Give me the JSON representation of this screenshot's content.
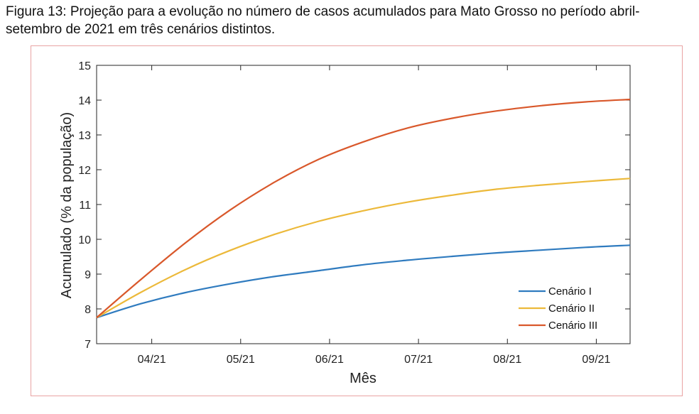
{
  "caption": "Figura 13: Projeção para a evolução no número de casos acumulados para Mato Grosso no período abril-setembro de 2021 em três cenários distintos.",
  "chart_data": {
    "type": "line",
    "title": "",
    "xlabel": "Mês",
    "ylabel": "Acumulado (% da população)",
    "xlim": [
      0,
      6
    ],
    "ylim": [
      7,
      15
    ],
    "yticks": [
      7,
      8,
      9,
      10,
      11,
      12,
      13,
      14,
      15
    ],
    "xticks": [
      {
        "pos": 0.62,
        "label": "04/21"
      },
      {
        "pos": 1.62,
        "label": "05/21"
      },
      {
        "pos": 2.62,
        "label": "06/21"
      },
      {
        "pos": 3.62,
        "label": "07/21"
      },
      {
        "pos": 4.62,
        "label": "08/21"
      },
      {
        "pos": 5.62,
        "label": "09/21"
      }
    ],
    "x": [
      0,
      0.5,
      1,
      1.5,
      2,
      2.5,
      3,
      3.5,
      4,
      4.5,
      5,
      5.5,
      6
    ],
    "series": [
      {
        "name": "Cenário I",
        "color": "#2f7bbf",
        "values": [
          7.75,
          8.15,
          8.47,
          8.72,
          8.93,
          9.1,
          9.27,
          9.4,
          9.51,
          9.61,
          9.69,
          9.77,
          9.83
        ]
      },
      {
        "name": "Cenário II",
        "color": "#ecb93a",
        "values": [
          7.75,
          8.48,
          9.13,
          9.68,
          10.14,
          10.52,
          10.82,
          11.07,
          11.27,
          11.44,
          11.56,
          11.66,
          11.75
        ]
      },
      {
        "name": "Cenário III",
        "color": "#d9582b",
        "values": [
          7.75,
          8.85,
          9.9,
          10.84,
          11.64,
          12.3,
          12.8,
          13.2,
          13.48,
          13.69,
          13.84,
          13.95,
          14.02
        ]
      }
    ],
    "legend": "bottom-right",
    "grid": false
  }
}
